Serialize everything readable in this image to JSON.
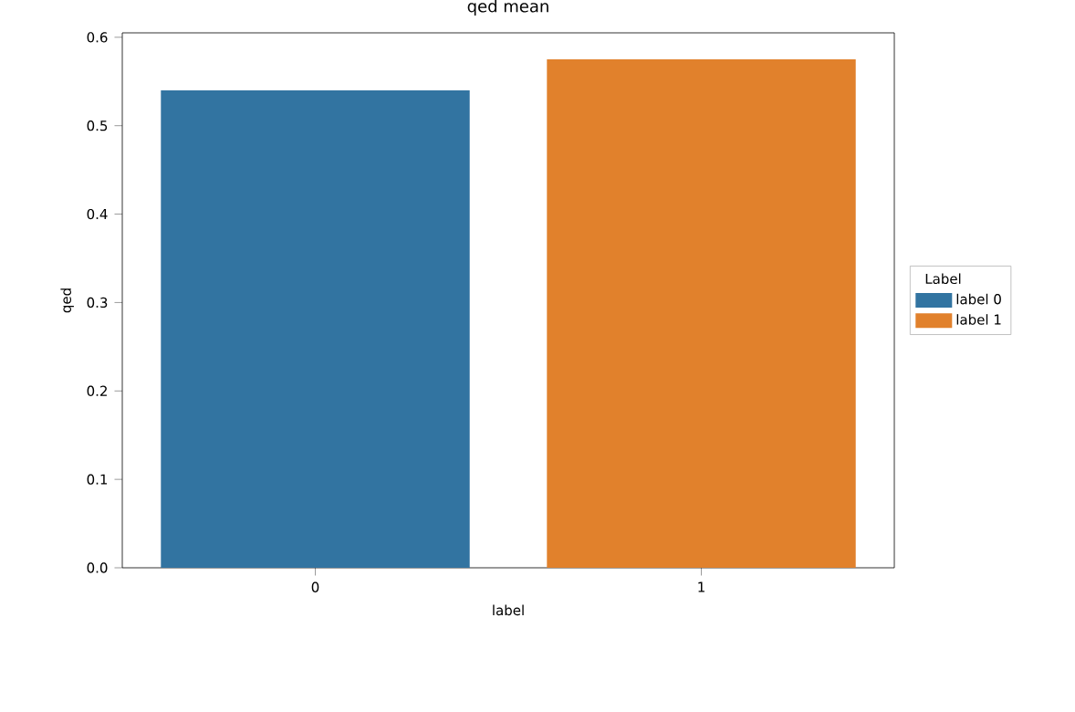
{
  "chart_data": {
    "type": "bar",
    "title": "qed mean",
    "xlabel": "label",
    "ylabel": "qed",
    "legend_title": "Label",
    "categories": [
      "0",
      "1"
    ],
    "series": [
      {
        "name": "label 0",
        "color": "#3274a1",
        "values": [
          0.54,
          null
        ]
      },
      {
        "name": "label 1",
        "color": "#e1812c",
        "values": [
          null,
          0.575
        ]
      }
    ],
    "ylim": [
      0,
      0.605
    ],
    "yticks": [
      {
        "value": 0,
        "label": "0.0"
      },
      {
        "value": 0.1,
        "label": "0.1"
      },
      {
        "value": 0.2,
        "label": "0.2"
      },
      {
        "value": 0.3,
        "label": "0.3"
      },
      {
        "value": 0.4,
        "label": "0.4"
      },
      {
        "value": 0.5,
        "label": "0.5"
      },
      {
        "value": 0.6,
        "label": "0.6"
      }
    ],
    "grid": false,
    "legend": "right"
  }
}
